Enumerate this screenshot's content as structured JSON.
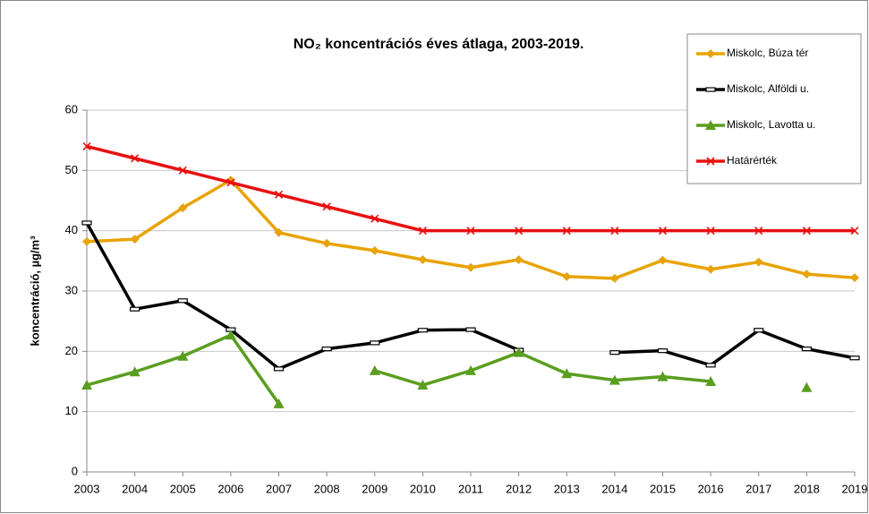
{
  "chart_data": {
    "type": "line",
    "title": "NO₂ koncentrációs éves átlaga, 2003-2019.",
    "y_label": "koncentráció, µg/m³",
    "categories": [
      "2003",
      "2004",
      "2005",
      "2006",
      "2007",
      "2008",
      "2009",
      "2010",
      "2011",
      "2012",
      "2013",
      "2014",
      "2015",
      "2016",
      "2017",
      "2018",
      "2019"
    ],
    "series": [
      {
        "name": "Miskolc, Búza tér",
        "color": "#e8a300",
        "marker": "diamond",
        "values": [
          38.2,
          38.6,
          43.8,
          48.4,
          39.7,
          37.9,
          36.7,
          35.2,
          33.9,
          35.2,
          32.4,
          32.1,
          35.1,
          33.6,
          34.8,
          32.8,
          32.2
        ]
      },
      {
        "name": "Miskolc, Alföldi u.",
        "color": "#000000",
        "marker": "dash",
        "values": [
          41.3,
          27.0,
          28.4,
          23.6,
          17.1,
          20.4,
          21.4,
          23.5,
          23.6,
          20.2,
          null,
          19.8,
          20.1,
          17.7,
          23.5,
          20.4,
          18.9
        ]
      },
      {
        "name": "Miskolc, Lavotta u.",
        "color": "#5a9e1f",
        "marker": "triangle",
        "values": [
          14.4,
          16.6,
          19.2,
          22.7,
          11.3,
          null,
          16.8,
          14.4,
          16.8,
          19.8,
          16.3,
          15.2,
          15.8,
          15.0,
          null,
          14.0,
          null
        ]
      },
      {
        "name": "Határérték",
        "color": "#e81010",
        "marker": "x",
        "values": [
          54,
          52,
          50,
          48,
          46,
          44,
          42,
          40,
          40,
          40,
          40,
          40,
          40,
          40,
          40,
          40,
          40
        ]
      }
    ],
    "ylim": [
      0,
      60
    ],
    "yticks": [
      0,
      10,
      20,
      30,
      40,
      50,
      60
    ],
    "grid": true,
    "legend": "upper right"
  }
}
